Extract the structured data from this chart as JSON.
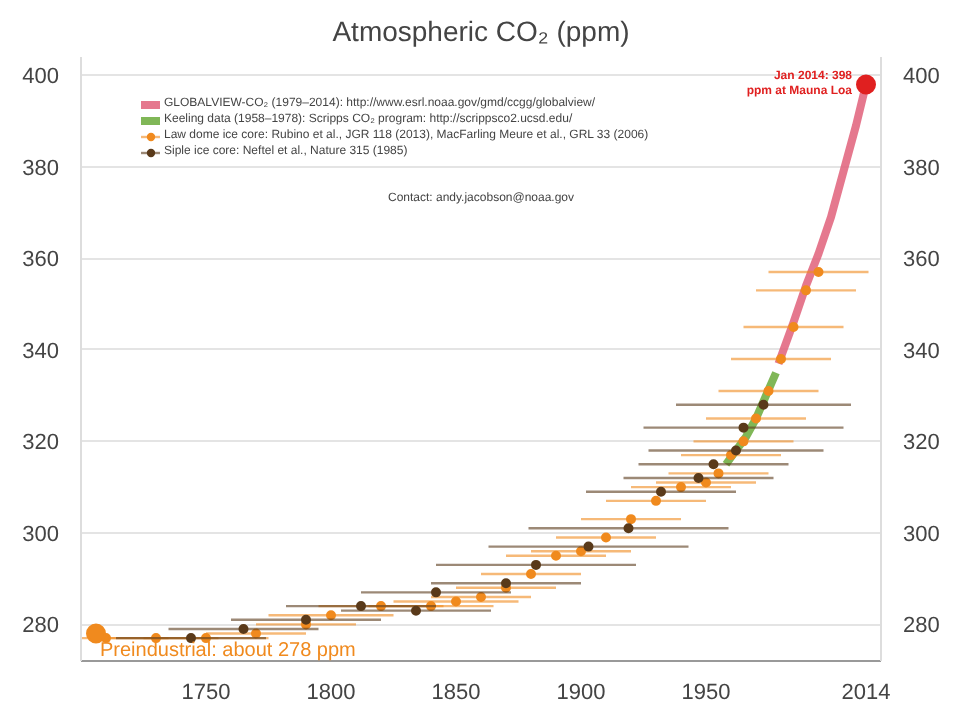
{
  "chart_data": {
    "type": "line",
    "title": "Atmospheric CO₂ (ppm)",
    "series": [
      {
        "name": "GLOBALVIEW-CO₂ (1979–2014): http://www.esrl.noaa.gov/gmd/ccgg/globalview/",
        "color": "#e0607a",
        "marker": "none",
        "x": [
          1979,
          1985,
          1990,
          1995,
          2000,
          2005,
          2010,
          2014
        ],
        "values": [
          337,
          346,
          354,
          361,
          369,
          379,
          389,
          398
        ]
      },
      {
        "name": "Keeling data (1958–1978): Scripps CO₂ program: http://scrippsco2.ucsd.edu/",
        "color": "#6aaa3a",
        "marker": "none",
        "x": [
          1958,
          1962,
          1966,
          1970,
          1974,
          1978
        ],
        "values": [
          315,
          318,
          321,
          325,
          330,
          335
        ]
      },
      {
        "name": "Law dome ice core: Rubino et al., JGR 118 (2013), MacFarling Meure et al., GRL 33 (2006)",
        "type": "scatter",
        "color": "#f08a1e",
        "marker": "circle",
        "x": [
          1710,
          1730,
          1750,
          1770,
          1790,
          1800,
          1820,
          1840,
          1850,
          1860,
          1870,
          1880,
          1890,
          1900,
          1910,
          1920,
          1930,
          1940,
          1950,
          1955,
          1960,
          1965,
          1970,
          1975,
          1980,
          1985,
          1990,
          1995
        ],
        "values": [
          277,
          277,
          277,
          278,
          280,
          282,
          284,
          284,
          285,
          286,
          288,
          291,
          295,
          296,
          299,
          303,
          307,
          310,
          311,
          313,
          317,
          320,
          325,
          331,
          338,
          345,
          353,
          357
        ],
        "xerrors": [
          25,
          25,
          25,
          20,
          20,
          25,
          25,
          25,
          25,
          20,
          20,
          20,
          20,
          20,
          20,
          20,
          20,
          20,
          20,
          20,
          20,
          20,
          20,
          20,
          20,
          20,
          20,
          20
        ]
      },
      {
        "name": "Siple ice core: Neftel et al., Nature 315 (1985)",
        "type": "scatter",
        "color": "#5a3a1a",
        "marker": "circle",
        "x": [
          1744,
          1765,
          1790,
          1812,
          1834,
          1842,
          1870,
          1882,
          1903,
          1919,
          1932,
          1947,
          1953,
          1962,
          1965,
          1973
        ],
        "values": [
          277,
          279,
          281,
          284,
          283,
          287,
          289,
          293,
          297,
          301,
          309,
          312,
          315,
          318,
          323,
          328
        ],
        "xerrors": [
          30,
          30,
          30,
          30,
          30,
          30,
          30,
          40,
          40,
          40,
          30,
          30,
          30,
          35,
          40,
          35
        ]
      }
    ],
    "annotations": [
      {
        "text": "Jan 2014: 398 ppm at Mauna Loa",
        "x": 2014,
        "y": 398
      },
      {
        "text": "Preindustrial: about 278 ppm",
        "x": 1706,
        "y": 278
      },
      "Contact: andy.jacobson@noaa.gov"
    ],
    "xlim": [
      1700,
      2020
    ],
    "xticks": [
      1750,
      1800,
      1850,
      1900,
      1950,
      2014
    ],
    "ylim": [
      272,
      404
    ],
    "yticks": [
      280,
      300,
      320,
      340,
      360,
      380,
      400
    ],
    "y2lim": [
      272,
      404
    ],
    "y2ticks": [
      280,
      300,
      320,
      340,
      360,
      380,
      400
    ],
    "grid": "y",
    "legend": "top"
  }
}
